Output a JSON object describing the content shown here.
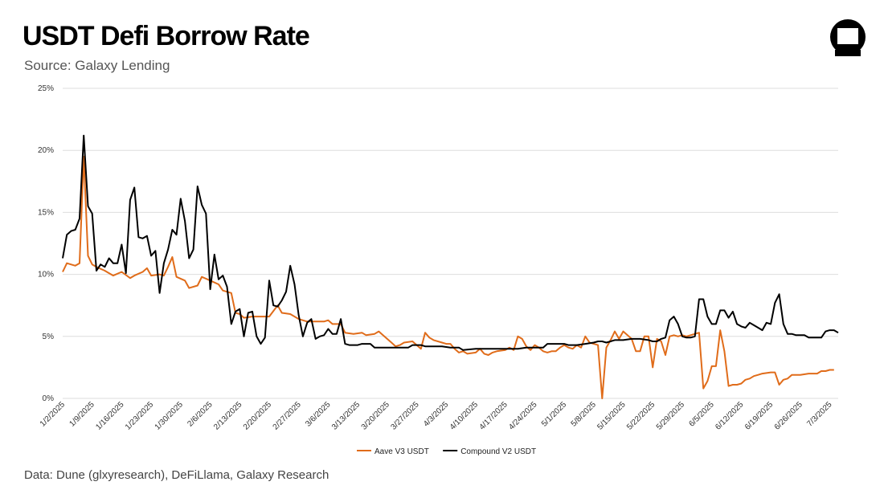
{
  "title": "USDT Defi Borrow Rate",
  "subtitle": "Source: Galaxy Lending",
  "footer": "Data: Dune (glxyresearch), DeFiLlama, Galaxy Research",
  "logo_icon": "galaxy-logo-icon",
  "chart_data": {
    "type": "line",
    "ylim": [
      0,
      25
    ],
    "yticks": [
      "0%",
      "5%",
      "10%",
      "15%",
      "20%",
      "25%"
    ],
    "grid": "horizontal",
    "legend_position": "bottom-center",
    "x_ticks": [
      "1/2/2025",
      "1/9/2025",
      "1/16/2025",
      "1/23/2025",
      "1/30/2025",
      "2/6/2025",
      "2/13/2025",
      "2/20/2025",
      "2/27/2025",
      "3/6/2025",
      "3/13/2025",
      "3/20/2025",
      "3/27/2025",
      "4/3/2025",
      "4/10/2025",
      "4/17/2025",
      "4/24/2025",
      "5/1/2025",
      "5/8/2025",
      "5/15/2025",
      "5/22/2025",
      "5/29/2025",
      "6/5/2025",
      "6/12/2025",
      "6/19/2025",
      "6/26/2025",
      "7/3/2025"
    ],
    "series": [
      {
        "name": "Aave V3 USDT",
        "color": "#E06C1A",
        "points": [
          [
            0,
            10.2
          ],
          [
            1,
            10.9
          ],
          [
            3,
            10.7
          ],
          [
            4,
            10.9
          ],
          [
            5,
            19.5
          ],
          [
            6,
            11.5
          ],
          [
            7,
            10.8
          ],
          [
            8,
            10.6
          ],
          [
            10,
            10.3
          ],
          [
            11,
            10.1
          ],
          [
            12,
            9.9
          ],
          [
            14,
            10.2
          ],
          [
            16,
            9.7
          ],
          [
            17,
            9.9
          ],
          [
            19,
            10.2
          ],
          [
            20,
            10.5
          ],
          [
            21,
            9.9
          ],
          [
            23,
            10.0
          ],
          [
            24,
            9.9
          ],
          [
            25,
            10.6
          ],
          [
            26,
            11.4
          ],
          [
            27,
            9.8
          ],
          [
            29,
            9.5
          ],
          [
            30,
            8.9
          ],
          [
            32,
            9.1
          ],
          [
            33,
            9.8
          ],
          [
            35,
            9.5
          ],
          [
            37,
            9.2
          ],
          [
            38,
            8.7
          ],
          [
            40,
            8.5
          ],
          [
            41,
            6.9
          ],
          [
            42,
            6.8
          ],
          [
            43,
            6.5
          ],
          [
            45,
            6.6
          ],
          [
            47,
            6.6
          ],
          [
            49,
            6.6
          ],
          [
            51,
            7.5
          ],
          [
            52,
            6.9
          ],
          [
            54,
            6.8
          ],
          [
            56,
            6.4
          ],
          [
            58,
            6.2
          ],
          [
            60,
            6.2
          ],
          [
            62,
            6.2
          ],
          [
            63,
            6.3
          ],
          [
            64,
            6.0
          ],
          [
            66,
            6.0
          ],
          [
            67,
            5.3
          ],
          [
            69,
            5.2
          ],
          [
            71,
            5.3
          ],
          [
            72,
            5.1
          ],
          [
            74,
            5.2
          ],
          [
            75,
            5.4
          ],
          [
            77,
            4.8
          ],
          [
            78,
            4.5
          ],
          [
            79,
            4.2
          ],
          [
            80,
            4.3
          ],
          [
            81,
            4.5
          ],
          [
            83,
            4.6
          ],
          [
            84,
            4.3
          ],
          [
            85,
            4.0
          ],
          [
            86,
            5.3
          ],
          [
            87,
            4.9
          ],
          [
            88,
            4.7
          ],
          [
            90,
            4.5
          ],
          [
            91,
            4.4
          ],
          [
            92,
            4.4
          ],
          [
            93,
            4.0
          ],
          [
            94,
            3.7
          ],
          [
            95,
            3.8
          ],
          [
            96,
            3.6
          ],
          [
            98,
            3.7
          ],
          [
            99,
            4.0
          ],
          [
            100,
            3.6
          ],
          [
            101,
            3.5
          ],
          [
            102,
            3.7
          ],
          [
            103,
            3.8
          ],
          [
            105,
            3.9
          ],
          [
            106,
            4.1
          ],
          [
            107,
            3.9
          ],
          [
            108,
            5.0
          ],
          [
            109,
            4.8
          ],
          [
            110,
            4.2
          ],
          [
            111,
            3.9
          ],
          [
            112,
            4.3
          ],
          [
            113,
            4.1
          ],
          [
            114,
            3.8
          ],
          [
            115,
            3.7
          ],
          [
            116,
            3.8
          ],
          [
            117,
            3.8
          ],
          [
            118,
            4.1
          ],
          [
            119,
            4.3
          ],
          [
            120,
            4.1
          ],
          [
            121,
            4.0
          ],
          [
            122,
            4.3
          ],
          [
            123,
            4.1
          ],
          [
            124,
            5.0
          ],
          [
            125,
            4.5
          ],
          [
            126,
            4.4
          ],
          [
            127,
            4.3
          ],
          [
            128,
            0.0
          ],
          [
            129,
            4.1
          ],
          [
            130,
            4.7
          ],
          [
            131,
            5.4
          ],
          [
            132,
            4.8
          ],
          [
            133,
            5.4
          ],
          [
            134,
            5.1
          ],
          [
            135,
            4.8
          ],
          [
            136,
            3.8
          ],
          [
            137,
            3.8
          ],
          [
            138,
            5.0
          ],
          [
            139,
            5.0
          ],
          [
            140,
            2.5
          ],
          [
            141,
            4.8
          ],
          [
            142,
            4.6
          ],
          [
            143,
            3.5
          ],
          [
            144,
            5.0
          ],
          [
            145,
            5.1
          ],
          [
            146,
            5.0
          ],
          [
            147,
            5.1
          ],
          [
            148,
            5.0
          ],
          [
            149,
            5.1
          ],
          [
            150,
            5.2
          ],
          [
            151,
            5.3
          ],
          [
            152,
            0.8
          ],
          [
            153,
            1.4
          ],
          [
            154,
            2.6
          ],
          [
            155,
            2.6
          ],
          [
            156,
            5.5
          ],
          [
            157,
            3.8
          ],
          [
            158,
            1.0
          ],
          [
            159,
            1.1
          ],
          [
            160,
            1.1
          ],
          [
            161,
            1.2
          ],
          [
            162,
            1.5
          ],
          [
            163,
            1.6
          ],
          [
            164,
            1.8
          ],
          [
            165,
            1.9
          ],
          [
            166,
            2.0
          ],
          [
            168,
            2.1
          ],
          [
            169,
            2.1
          ],
          [
            170,
            1.1
          ],
          [
            171,
            1.5
          ],
          [
            172,
            1.6
          ],
          [
            173,
            1.9
          ],
          [
            175,
            1.9
          ],
          [
            177,
            2.0
          ],
          [
            179,
            2.0
          ],
          [
            180,
            2.2
          ],
          [
            181,
            2.2
          ],
          [
            182,
            2.3
          ],
          [
            183,
            2.3
          ]
        ]
      },
      {
        "name": "Compound V2 USDT",
        "color": "#000000",
        "points": [
          [
            0,
            11.3
          ],
          [
            1,
            13.2
          ],
          [
            2,
            13.5
          ],
          [
            3,
            13.6
          ],
          [
            4,
            14.5
          ],
          [
            5,
            21.2
          ],
          [
            6,
            15.5
          ],
          [
            7,
            14.9
          ],
          [
            8,
            10.3
          ],
          [
            9,
            10.8
          ],
          [
            10,
            10.6
          ],
          [
            11,
            11.3
          ],
          [
            12,
            10.9
          ],
          [
            13,
            10.9
          ],
          [
            14,
            12.4
          ],
          [
            15,
            10.1
          ],
          [
            16,
            16.0
          ],
          [
            17,
            17.0
          ],
          [
            18,
            13.0
          ],
          [
            19,
            12.9
          ],
          [
            20,
            13.1
          ],
          [
            21,
            11.5
          ],
          [
            22,
            11.9
          ],
          [
            23,
            8.5
          ],
          [
            24,
            10.9
          ],
          [
            25,
            12.0
          ],
          [
            26,
            13.6
          ],
          [
            27,
            13.2
          ],
          [
            28,
            16.1
          ],
          [
            29,
            14.3
          ],
          [
            30,
            11.3
          ],
          [
            31,
            12.0
          ],
          [
            32,
            17.1
          ],
          [
            33,
            15.6
          ],
          [
            34,
            14.9
          ],
          [
            35,
            8.8
          ],
          [
            36,
            11.6
          ],
          [
            37,
            9.6
          ],
          [
            38,
            9.9
          ],
          [
            39,
            9.0
          ],
          [
            40,
            6.0
          ],
          [
            41,
            7.0
          ],
          [
            42,
            7.2
          ],
          [
            43,
            5.0
          ],
          [
            44,
            6.9
          ],
          [
            45,
            7.0
          ],
          [
            46,
            5.0
          ],
          [
            47,
            4.4
          ],
          [
            48,
            4.9
          ],
          [
            49,
            9.5
          ],
          [
            50,
            7.5
          ],
          [
            51,
            7.4
          ],
          [
            52,
            7.9
          ],
          [
            53,
            8.6
          ],
          [
            54,
            10.7
          ],
          [
            55,
            9.2
          ],
          [
            56,
            6.7
          ],
          [
            57,
            5.0
          ],
          [
            58,
            6.1
          ],
          [
            59,
            6.4
          ],
          [
            60,
            4.8
          ],
          [
            61,
            5.0
          ],
          [
            62,
            5.1
          ],
          [
            63,
            5.6
          ],
          [
            64,
            5.2
          ],
          [
            65,
            5.2
          ],
          [
            66,
            6.4
          ],
          [
            67,
            4.4
          ],
          [
            68,
            4.3
          ],
          [
            70,
            4.3
          ],
          [
            71,
            4.4
          ],
          [
            73,
            4.4
          ],
          [
            74,
            4.1
          ],
          [
            78,
            4.1
          ],
          [
            80,
            4.1
          ],
          [
            82,
            4.1
          ],
          [
            83,
            4.3
          ],
          [
            85,
            4.3
          ],
          [
            86,
            4.2
          ],
          [
            88,
            4.2
          ],
          [
            90,
            4.2
          ],
          [
            92,
            4.1
          ],
          [
            94,
            4.1
          ],
          [
            95,
            3.9
          ],
          [
            98,
            4.0
          ],
          [
            100,
            4.0
          ],
          [
            102,
            4.0
          ],
          [
            104,
            4.0
          ],
          [
            106,
            4.0
          ],
          [
            108,
            4.0
          ],
          [
            110,
            4.1
          ],
          [
            112,
            4.1
          ],
          [
            114,
            4.1
          ],
          [
            115,
            4.4
          ],
          [
            117,
            4.4
          ],
          [
            119,
            4.4
          ],
          [
            120,
            4.3
          ],
          [
            122,
            4.3
          ],
          [
            124,
            4.4
          ],
          [
            126,
            4.5
          ],
          [
            127,
            4.6
          ],
          [
            128,
            4.6
          ],
          [
            129,
            4.5
          ],
          [
            130,
            4.6
          ],
          [
            131,
            4.7
          ],
          [
            133,
            4.7
          ],
          [
            135,
            4.8
          ],
          [
            137,
            4.8
          ],
          [
            139,
            4.7
          ],
          [
            140,
            4.6
          ],
          [
            141,
            4.6
          ],
          [
            142,
            4.8
          ],
          [
            143,
            4.9
          ],
          [
            144,
            6.3
          ],
          [
            145,
            6.6
          ],
          [
            146,
            6.0
          ],
          [
            147,
            5.0
          ],
          [
            148,
            4.9
          ],
          [
            149,
            4.9
          ],
          [
            150,
            5.0
          ],
          [
            151,
            8.0
          ],
          [
            152,
            8.0
          ],
          [
            153,
            6.6
          ],
          [
            154,
            6.0
          ],
          [
            155,
            6.0
          ],
          [
            156,
            7.1
          ],
          [
            157,
            7.1
          ],
          [
            158,
            6.5
          ],
          [
            159,
            7.0
          ],
          [
            160,
            6.0
          ],
          [
            161,
            5.8
          ],
          [
            162,
            5.7
          ],
          [
            163,
            6.1
          ],
          [
            164,
            5.9
          ],
          [
            165,
            5.7
          ],
          [
            166,
            5.5
          ],
          [
            167,
            6.1
          ],
          [
            168,
            6.0
          ],
          [
            169,
            7.7
          ],
          [
            170,
            8.4
          ],
          [
            171,
            6.0
          ],
          [
            172,
            5.2
          ],
          [
            173,
            5.2
          ],
          [
            174,
            5.1
          ],
          [
            175,
            5.1
          ],
          [
            176,
            5.1
          ],
          [
            177,
            4.9
          ],
          [
            178,
            4.9
          ],
          [
            179,
            4.9
          ],
          [
            180,
            4.9
          ],
          [
            181,
            5.4
          ],
          [
            182,
            5.5
          ],
          [
            183,
            5.5
          ],
          [
            184,
            5.3
          ]
        ]
      }
    ]
  }
}
